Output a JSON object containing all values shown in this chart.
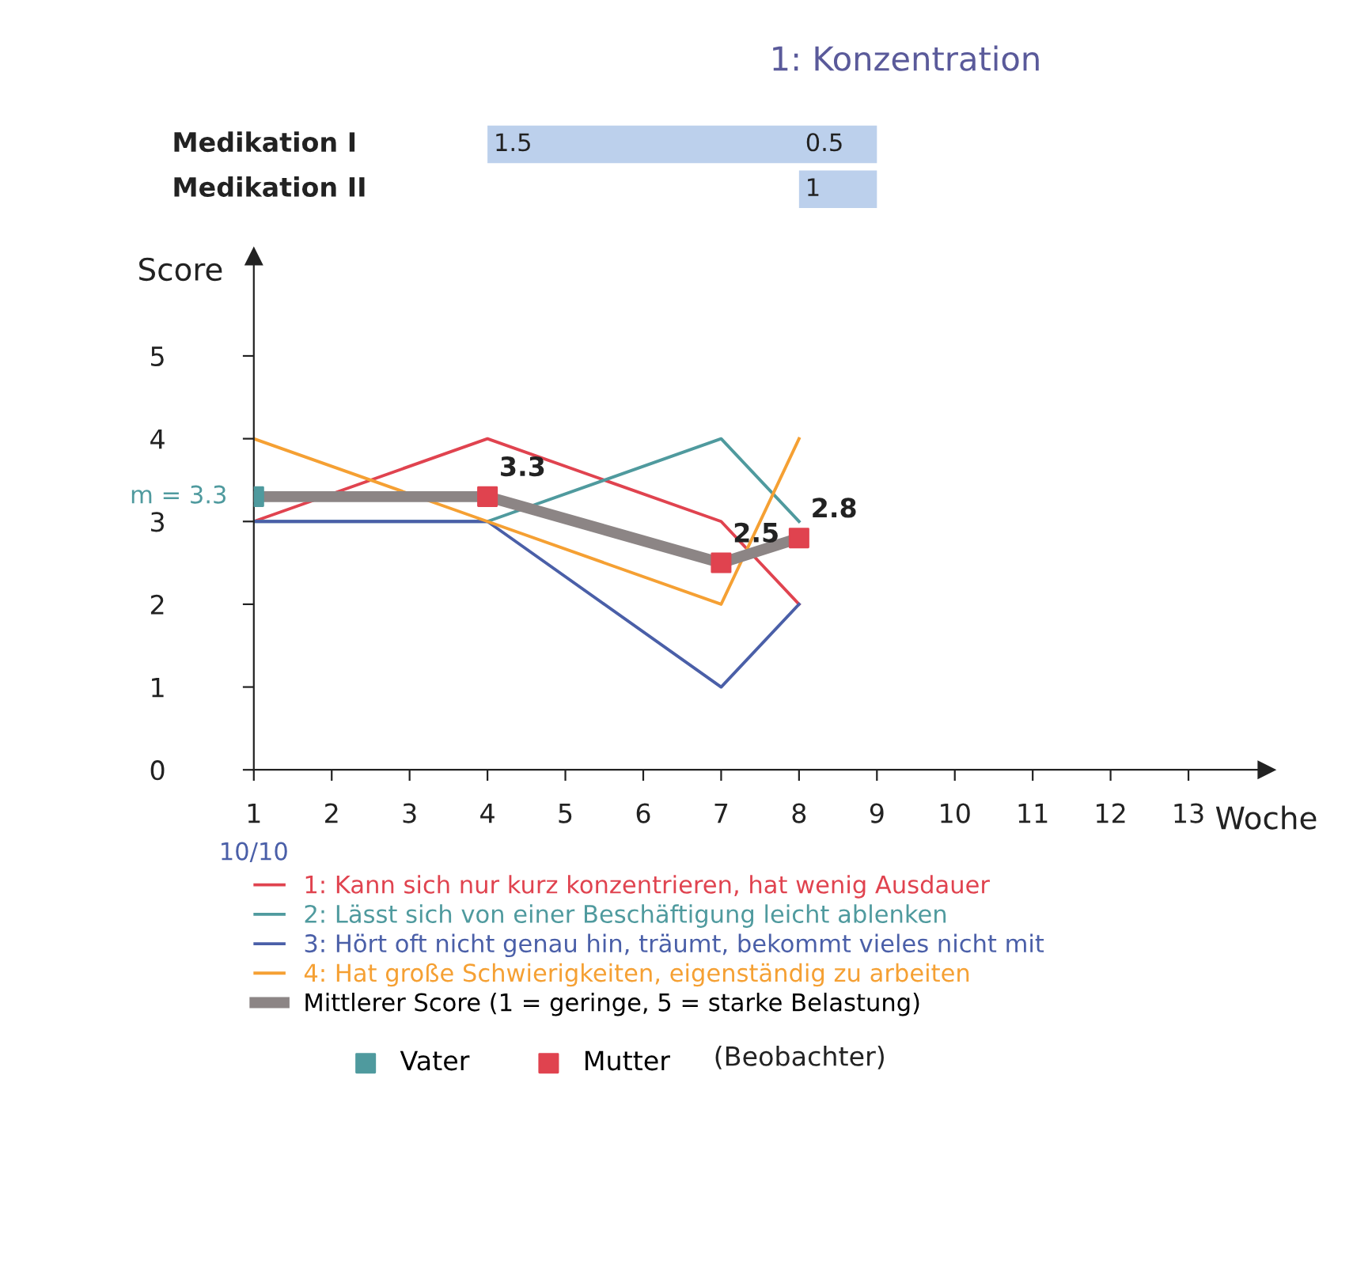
{
  "chart_data": [
    {
      "type": "other",
      "title": "1: Konzentration",
      "annotations": [
        "Medikation I",
        "Medikation II",
        "1.5",
        "0.5",
        "1"
      ]
    },
    {
      "type": "line",
      "title": null,
      "xlabel": "Woche",
      "ylabel": "Score",
      "xlim": [
        1,
        14
      ],
      "ylim": [
        0,
        6.2
      ],
      "xticks": [
        1,
        2,
        3,
        4,
        5,
        6,
        7,
        8,
        9,
        10,
        11,
        12,
        13
      ],
      "yticks": [
        0,
        1,
        2,
        3,
        4,
        5
      ],
      "grid": false,
      "legend": "bottom",
      "line_style": "solid",
      "marker": "none",
      "series": [
        {
          "name": "1: Kann sich nur kurz konzentrieren, hat wenig Ausdauer",
          "color": "#e0434f",
          "x": [
            1,
            4,
            7,
            8
          ],
          "values": [
            3,
            4,
            3,
            2
          ]
        },
        {
          "name": "2: Lässt sich von einer Beschäftigung leicht ablenken",
          "color": "#4f9a9e",
          "x": [
            1,
            4,
            7,
            8
          ],
          "values": [
            3,
            3,
            4,
            3
          ]
        },
        {
          "name": "3: Hört oft nicht genau hin, träumt, bekommt vieles nicht mit",
          "color": "#4a5fa8",
          "x": [
            1,
            4,
            7,
            8
          ],
          "values": [
            3,
            3,
            1,
            2
          ]
        },
        {
          "name": "4: Hat große Schwierigkeiten, eigenständig zu arbeiten",
          "color": "#f5a033",
          "x": [
            1,
            4,
            7,
            8
          ],
          "values": [
            4,
            3,
            2,
            4
          ]
        },
        {
          "name": "Mittlerer Score (1 = geringe, 5 = starke Belastung)",
          "color": "#8c8585",
          "x": [
            1,
            4,
            7,
            8
          ],
          "values": [
            3.3,
            3.3,
            2.5,
            2.8
          ],
          "value_labels": [
            null,
            "3.3",
            "2.5",
            "2.8"
          ]
        },
        {
          "name": "Vater",
          "type": "scatter",
          "marker": "square",
          "color": "#4f9a9e",
          "x": [
            1
          ],
          "values": [
            3.3
          ]
        },
        {
          "name": "Mutter",
          "type": "scatter",
          "marker": "square",
          "color": "#e0434f",
          "x": [
            4,
            7,
            8
          ],
          "values": [
            3.3,
            2.5,
            2.8
          ]
        }
      ],
      "annotations": [
        {
          "text": "m = 3.3",
          "x": 1,
          "y": 3.3
        },
        "10/10",
        "(Beobachter)"
      ]
    }
  ]
}
